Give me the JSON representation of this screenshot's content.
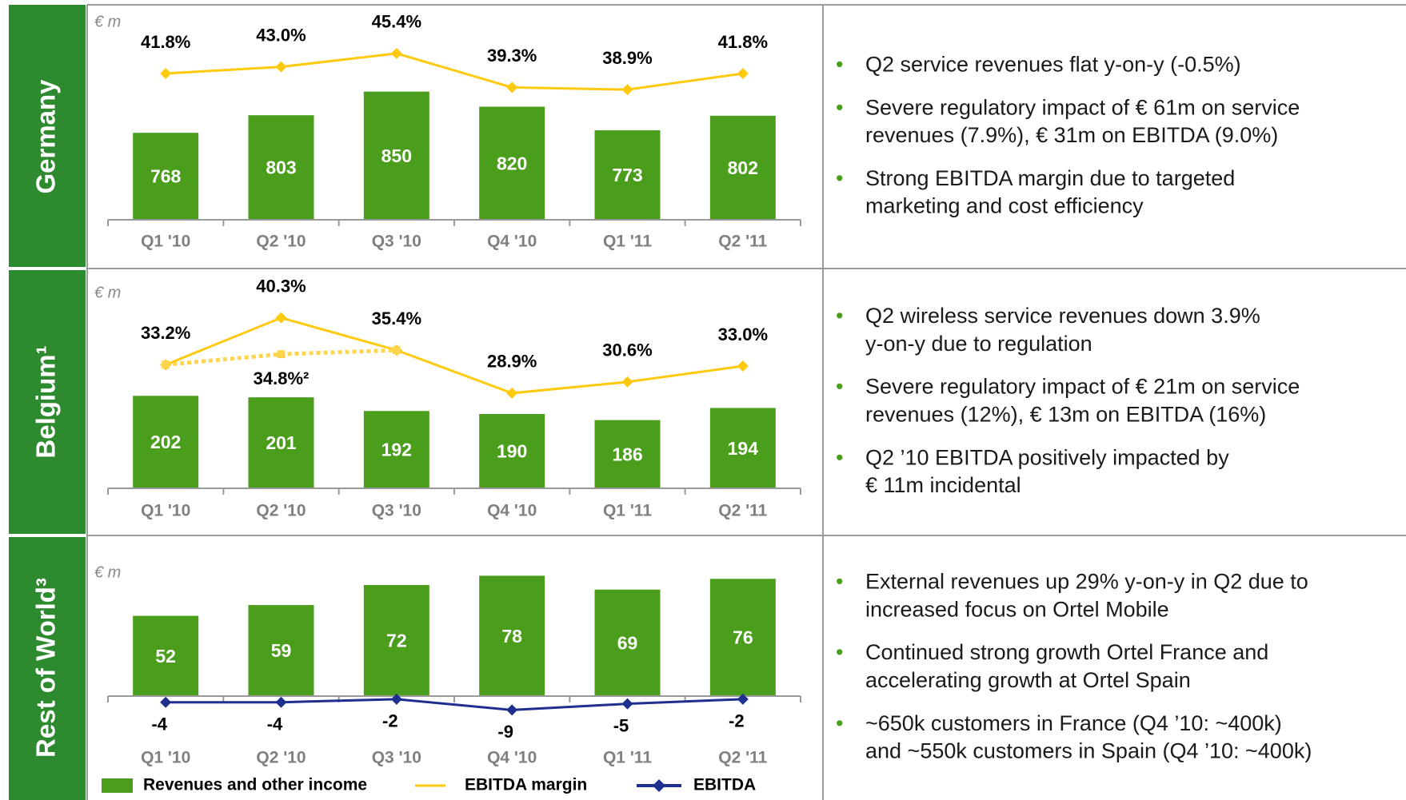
{
  "chart_data": [
    {
      "type": "combo",
      "unit": "€ m",
      "categories": [
        "Q1 '10",
        "Q2 '10",
        "Q3 '10",
        "Q4 '10",
        "Q1 '11",
        "Q2 '11"
      ],
      "ylim": [
        595,
        1010
      ],
      "y2lim": [
        15.5,
        53
      ],
      "series": [
        {
          "name": "Revenues and other income",
          "type": "bar",
          "color": "#4a9e1c",
          "values": [
            768,
            803,
            850,
            820,
            773,
            802
          ]
        },
        {
          "name": "EBITDA margin",
          "type": "line",
          "axis": "y2",
          "color": "#ffc90e",
          "values": [
            41.8,
            43.0,
            45.4,
            39.3,
            38.9,
            41.8
          ],
          "value_labels": [
            "41.8%",
            "43.0%",
            "45.4%",
            "39.3%",
            "38.9%",
            "41.8%"
          ]
        }
      ]
    },
    {
      "type": "combo",
      "unit": "€ m",
      "categories": [
        "Q1 '10",
        "Q2 '10",
        "Q3 '10",
        "Q4 '10",
        "Q1 '11",
        "Q2 '11"
      ],
      "ylim": [
        141,
        277
      ],
      "y2lim": [
        14.5,
        45.7
      ],
      "series": [
        {
          "type": "bar",
          "color": "#4a9e1c",
          "values": [
            202,
            201,
            192,
            190,
            186,
            194
          ]
        },
        {
          "type": "line",
          "axis": "y2",
          "color": "#ffc90e",
          "values": [
            33.2,
            40.3,
            35.4,
            28.9,
            30.6,
            33.0
          ],
          "value_labels": [
            "33.2%",
            "40.3%",
            "35.4%",
            "28.9%",
            "30.6%",
            "33.0%"
          ]
        },
        {
          "type": "line",
          "axis": "y2",
          "dash": true,
          "color": "#ffd54f",
          "values": [
            33.2,
            34.8,
            35.4,
            null,
            null,
            null
          ],
          "value_labels": [
            null,
            "34.8%²",
            null,
            null,
            null,
            null
          ]
        }
      ]
    },
    {
      "type": "combo",
      "unit": "€ m",
      "categories": [
        "Q1 '10",
        "Q2 '10",
        "Q3 '10",
        "Q4 '10",
        "Q1 '11",
        "Q2 '11"
      ],
      "ylim": [
        -14,
        87
      ],
      "series": [
        {
          "type": "bar",
          "color": "#4a9e1c",
          "values": [
            52,
            59,
            72,
            78,
            69,
            76
          ]
        },
        {
          "name": "EBITDA",
          "type": "line",
          "color": "#1f2f8f",
          "values": [
            -4,
            -4,
            -2,
            -9,
            -5,
            -2
          ]
        }
      ]
    }
  ],
  "sections": [
    {
      "label": "Germany",
      "bullets": [
        [
          "Q2 service revenues flat y-on-y (-0.5%)"
        ],
        [
          "Severe regulatory impact of € 61m on service",
          "revenues (7.9%), € 31m on EBITDA (9.0%)"
        ],
        [
          "Strong EBITDA margin due to targeted",
          "marketing and cost efficiency"
        ]
      ]
    },
    {
      "label": "Belgium¹",
      "bullets": [
        [
          "Q2 wireless service revenues down 3.9%",
          "y-on-y due to regulation"
        ],
        [
          "Severe regulatory impact of € 21m on service",
          "revenues (12%), € 13m on EBITDA (16%)"
        ],
        [
          "Q2 ’10 EBITDA positively impacted by",
          "€ 11m incidental"
        ]
      ]
    },
    {
      "label": "Rest of World³",
      "bullets": [
        [
          "External revenues up 29% y-on-y in Q2 due to",
          "increased focus on Ortel Mobile"
        ],
        [
          "Continued strong growth Ortel France and",
          "accelerating growth at Ortel Spain"
        ],
        [
          "~650k customers in France (Q4 ’10: ~400k)",
          "and ~550k customers in Spain (Q4 ’10: ~400k)"
        ]
      ]
    }
  ]
}
